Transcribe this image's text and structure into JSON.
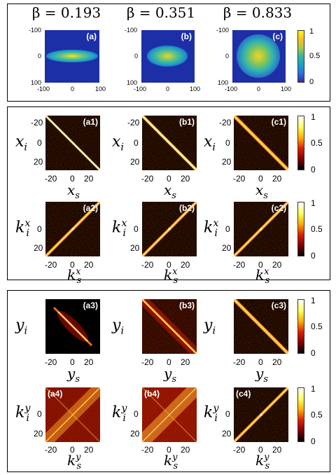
{
  "top": {
    "headers": [
      "β = 0.193",
      "β = 0.351",
      "β = 0.833"
    ],
    "panel_labels": [
      "(a)",
      "(b)",
      "(c)"
    ],
    "y_ticks": [
      "-100",
      "0",
      "100"
    ],
    "x_ticks": [
      "-100",
      "0",
      "100"
    ],
    "colorbar_ticks": [
      "1",
      "0.5",
      "0"
    ],
    "colors": {
      "low": "#2b36a0",
      "mid": "#21a8b8",
      "high": "#f8e21e"
    }
  },
  "middle": {
    "row1_labels": [
      "(a1)",
      "(b1)",
      "(c1)"
    ],
    "row2_labels": [
      "(a2)",
      "(b2)",
      "(c2)"
    ],
    "y_ticks": [
      "-20",
      "0",
      "20"
    ],
    "x_ticks": [
      "-20",
      "0",
      "20"
    ],
    "row1_ylabel_base": "x",
    "row1_ylabel_sub": "i",
    "row1_xlabel_base": "x",
    "row1_xlabel_sub": "s",
    "row2_ylabel_base": "k",
    "row2_ylabel_sub": "i",
    "row2_ylabel_sup": "x",
    "row2_xlabel_base": "k",
    "row2_xlabel_sub": "s",
    "row2_xlabel_sup": "x",
    "colorbar_ticks": [
      "1",
      "0.5",
      "0"
    ]
  },
  "bottom": {
    "row1_labels": [
      "(a3)",
      "(b3)",
      "(c3)"
    ],
    "row2_labels": [
      "(a4)",
      "(b4)",
      "(c4)"
    ],
    "y_ticks": [
      "-20",
      "0",
      "20"
    ],
    "x_ticks": [
      "-20",
      "0",
      "20"
    ],
    "row1_ylabel_base": "y",
    "row1_ylabel_sub": "i",
    "row1_xlabel_base": "y",
    "row1_xlabel_sub": "s",
    "row2_ylabel_base": "k",
    "row2_ylabel_sub": "i",
    "row2_ylabel_sup": "y",
    "row2_xlabel_base": "k",
    "row2_xlabel_sub": "s",
    "row2_xlabel_sup": "y",
    "colorbar_ticks": [
      "1",
      "0.5",
      "0"
    ]
  }
}
